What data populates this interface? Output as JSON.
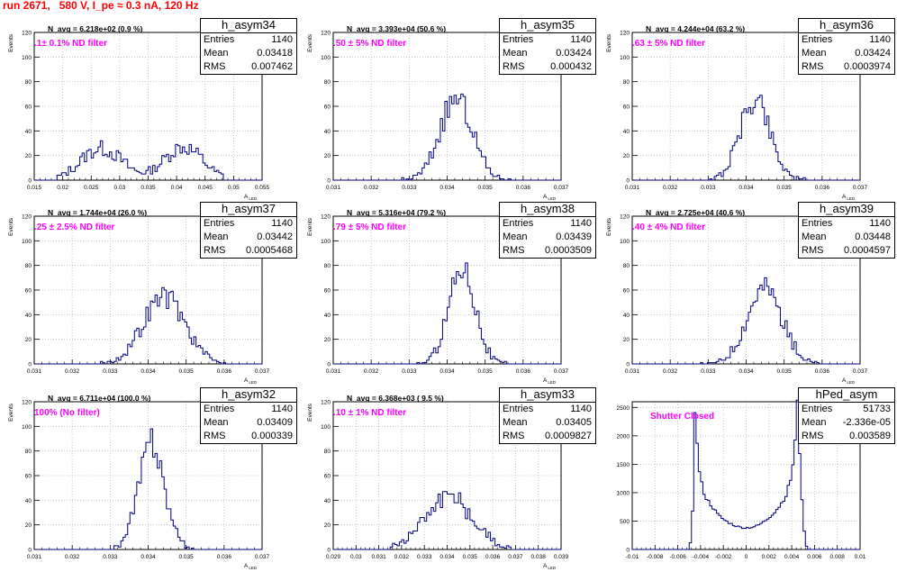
{
  "run_title": "run 2671,   580 V, I_pe ≈ 0.3 nA, 120 Hz",
  "colors": {
    "title": "#ff0000",
    "histogram": "#000080",
    "annotation": "#ff00ff",
    "grid": "#bbbbbb"
  },
  "stat_labels": {
    "entries": "Entries",
    "mean": "Mean",
    "rms": "RMS"
  },
  "chart_data": [
    {
      "type": "histogram",
      "name": "h_asym34",
      "n_avg": "N_avg = 6.218e+02 (0.9 %)",
      "filter": ".1± 0.1% ND filter",
      "entries": "1140",
      "mean": "0.03418",
      "rms": "0.007462",
      "ylabel": "Events",
      "xlabel": "A_LED",
      "xlim": [
        0.015,
        0.055
      ],
      "ylim": [
        0,
        120
      ],
      "grid": true,
      "xticks": [
        "0.015",
        "0.02",
        "0.025",
        "0.03",
        "0.035",
        "0.04",
        "0.045",
        "0.05",
        "0.055"
      ],
      "xtick_values": [
        0.015,
        0.02,
        0.025,
        0.03,
        0.035,
        0.04,
        0.045,
        0.05,
        0.055
      ],
      "yticks": [
        0,
        20,
        40,
        60,
        80,
        100,
        120
      ],
      "peaks": [
        {
          "center": 0.0268,
          "sigma": 0.0036,
          "height": 26
        },
        {
          "center": 0.0412,
          "sigma": 0.0034,
          "height": 27
        }
      ],
      "x_range": [
        0.019,
        0.048
      ]
    },
    {
      "type": "histogram",
      "name": "h_asym35",
      "n_avg": "N_avg = 3.393e+04 (50.6 %)",
      "filter": ".50 ± 5% ND filter",
      "entries": "1140",
      "mean": "0.03424",
      "rms": "0.000432",
      "ylabel": "Events",
      "xlabel": "A_LED",
      "xlim": [
        0.031,
        0.037
      ],
      "ylim": [
        0,
        120
      ],
      "grid": true,
      "xticks": [
        "0.031",
        "0.032",
        "0.033",
        "0.034",
        "0.035",
        "0.036",
        "0.037"
      ],
      "xtick_values": [
        0.031,
        0.032,
        0.033,
        0.034,
        0.035,
        0.036,
        0.037
      ],
      "yticks": [
        0,
        20,
        40,
        60,
        80,
        100,
        120
      ],
      "peaks": [
        {
          "center": 0.03424,
          "sigma": 0.00043,
          "height": 66
        }
      ],
      "x_range": [
        0.0328,
        0.0358
      ]
    },
    {
      "type": "histogram",
      "name": "h_asym36",
      "n_avg": "N_avg = 4.244e+04 (63.2 %)",
      "filter": ".63 ± 5% ND filter",
      "entries": "1140",
      "mean": "0.03424",
      "rms": "0.0003974",
      "ylabel": "Events",
      "xlabel": "A_LED",
      "xlim": [
        0.031,
        0.037
      ],
      "ylim": [
        0,
        120
      ],
      "grid": true,
      "xticks": [
        "0.031",
        "0.032",
        "0.033",
        "0.034",
        "0.035",
        "0.036",
        "0.037"
      ],
      "xtick_values": [
        0.031,
        0.032,
        0.033,
        0.034,
        0.035,
        0.036,
        0.037
      ],
      "yticks": [
        0,
        20,
        40,
        60,
        80,
        100,
        120
      ],
      "peaks": [
        {
          "center": 0.03424,
          "sigma": 0.000397,
          "height": 66
        }
      ],
      "x_range": [
        0.033,
        0.0356
      ]
    },
    {
      "type": "histogram",
      "name": "h_asym37",
      "n_avg": "N_avg = 1.744e+04 (26.0 %)",
      "filter": ".25 ± 2.5% ND filter",
      "entries": "1140",
      "mean": "0.03442",
      "rms": "0.0005468",
      "ylabel": "Events",
      "xlabel": "A_LED",
      "xlim": [
        0.031,
        0.037
      ],
      "ylim": [
        0,
        120
      ],
      "grid": true,
      "xticks": [
        "0.031",
        "0.032",
        "0.033",
        "0.034",
        "0.035",
        "0.036",
        "0.037"
      ],
      "xtick_values": [
        0.031,
        0.032,
        0.033,
        0.034,
        0.035,
        0.036,
        0.037
      ],
      "yticks": [
        0,
        20,
        40,
        60,
        80,
        100,
        120
      ],
      "peaks": [
        {
          "center": 0.03442,
          "sigma": 0.000547,
          "height": 55
        }
      ],
      "x_range": [
        0.0326,
        0.0362
      ]
    },
    {
      "type": "histogram",
      "name": "h_asym38",
      "n_avg": "N_avg = 5.316e+04 (79.2 %)",
      "filter": ".79 ± 5% ND filter",
      "entries": "1140",
      "mean": "0.03439",
      "rms": "0.0003509",
      "ylabel": "Events",
      "xlabel": "A_LED",
      "xlim": [
        0.031,
        0.037
      ],
      "ylim": [
        0,
        120
      ],
      "grid": true,
      "xticks": [
        "0.031",
        "0.032",
        "0.033",
        "0.034",
        "0.035",
        "0.036",
        "0.037"
      ],
      "xtick_values": [
        0.031,
        0.032,
        0.033,
        0.034,
        0.035,
        0.036,
        0.037
      ],
      "yticks": [
        0,
        20,
        40,
        60,
        80,
        100,
        120
      ],
      "peaks": [
        {
          "center": 0.03439,
          "sigma": 0.000351,
          "height": 80
        }
      ],
      "x_range": [
        0.0332,
        0.0356
      ]
    },
    {
      "type": "histogram",
      "name": "h_asym39",
      "n_avg": "N_avg = 2.725e+04 (40.6 %)",
      "filter": ".40 ± 4% ND filter",
      "entries": "1140",
      "mean": "0.03448",
      "rms": "0.0004597",
      "ylabel": "Events",
      "xlabel": "A_LED",
      "xlim": [
        0.031,
        0.037
      ],
      "ylim": [
        0,
        120
      ],
      "grid": true,
      "xticks": [
        "0.031",
        "0.032",
        "0.033",
        "0.034",
        "0.035",
        "0.036",
        "0.037"
      ],
      "xtick_values": [
        0.031,
        0.032,
        0.033,
        0.034,
        0.035,
        0.036,
        0.037
      ],
      "yticks": [
        0,
        20,
        40,
        60,
        80,
        100,
        120
      ],
      "peaks": [
        {
          "center": 0.03448,
          "sigma": 0.00046,
          "height": 62
        }
      ],
      "x_range": [
        0.0328,
        0.036
      ]
    },
    {
      "type": "histogram",
      "name": "h_asym32",
      "n_avg": "N_avg = 6.711e+04 (100.0 %)",
      "filter": "100% (No filter)",
      "entries": "1140",
      "mean": "0.03409",
      "rms": "0.000339",
      "ylabel": "Events",
      "xlabel": "A_LED",
      "xlim": [
        0.031,
        0.037
      ],
      "ylim": [
        0,
        120
      ],
      "grid": true,
      "xticks": [
        "0.031",
        "0.032",
        "0.033",
        "0.034",
        "0.035",
        "0.036",
        "0.037"
      ],
      "xtick_values": [
        0.031,
        0.032,
        0.033,
        0.034,
        0.035,
        0.036,
        0.037
      ],
      "yticks": [
        0,
        20,
        40,
        60,
        80,
        100,
        120
      ],
      "peaks": [
        {
          "center": 0.03409,
          "sigma": 0.000339,
          "height": 86
        }
      ],
      "x_range": [
        0.033,
        0.0352
      ]
    },
    {
      "type": "histogram",
      "name": "h_asym33",
      "n_avg": "N_avg = 6.368e+03 ( 9.5 %)",
      "filter": ".10 ± 1% ND filter",
      "entries": "1140",
      "mean": "0.03405",
      "rms": "0.0009827",
      "ylabel": "Events",
      "xlabel": "A_LED",
      "xlim": [
        0.029,
        0.039
      ],
      "ylim": [
        0,
        120
      ],
      "grid": true,
      "xticks": [
        "0.029",
        "0.03",
        "0.031",
        "0.032",
        "0.033",
        "0.034",
        "0.035",
        "0.036",
        "0.037",
        "0.038",
        "0.039"
      ],
      "xtick_values": [
        0.029,
        0.03,
        0.031,
        0.032,
        0.033,
        0.034,
        0.035,
        0.036,
        0.037,
        0.038,
        0.039
      ],
      "yticks": [
        0,
        20,
        40,
        60,
        80,
        100,
        120
      ],
      "peaks": [
        {
          "center": 0.03405,
          "sigma": 0.00105,
          "height": 44
        }
      ],
      "x_range": [
        0.0315,
        0.0368
      ]
    },
    {
      "type": "histogram",
      "name": "hPed_asym",
      "n_avg": "",
      "filter": "Shutter Closed",
      "entries": "51733",
      "mean": "-2.336e-05",
      "rms": "0.003589",
      "ylabel": "",
      "xlabel": "",
      "xlim": [
        -0.01,
        0.01
      ],
      "ylim": [
        0,
        2600
      ],
      "grid": true,
      "xticks": [
        "-0.01",
        "-0.008",
        "-0.006",
        "-0.004",
        "-0.002",
        "0",
        "0.002",
        "0.004",
        "0.006",
        "0.008",
        "0.01"
      ],
      "xtick_values": [
        -0.01,
        -0.008,
        -0.006,
        -0.004,
        -0.002,
        0,
        0.002,
        0.004,
        0.006,
        0.008,
        0.01
      ],
      "yticks": [
        0,
        500,
        1000,
        1500,
        2000,
        2500
      ],
      "ped_profile": [
        [
          -0.005,
          0
        ],
        [
          -0.0049,
          120
        ],
        [
          -0.0047,
          700
        ],
        [
          -0.0046,
          1400
        ],
        [
          -0.0045,
          2350
        ],
        [
          -0.0044,
          2550
        ],
        [
          -0.0043,
          1900
        ],
        [
          -0.0041,
          1350
        ],
        [
          -0.0038,
          1050
        ],
        [
          -0.0035,
          900
        ],
        [
          -0.003,
          760
        ],
        [
          -0.0025,
          620
        ],
        [
          -0.002,
          530
        ],
        [
          -0.0015,
          470
        ],
        [
          -0.001,
          420
        ],
        [
          -0.0005,
          390
        ],
        [
          0.0,
          380
        ],
        [
          0.0005,
          390
        ],
        [
          0.001,
          420
        ],
        [
          0.0015,
          480
        ],
        [
          0.002,
          560
        ],
        [
          0.0025,
          660
        ],
        [
          0.003,
          780
        ],
        [
          0.0035,
          950
        ],
        [
          0.004,
          1300
        ],
        [
          0.0043,
          1900
        ],
        [
          0.0045,
          2550
        ],
        [
          0.0046,
          2150
        ],
        [
          0.0048,
          1300
        ],
        [
          0.005,
          500
        ],
        [
          0.0052,
          120
        ],
        [
          0.0054,
          0
        ]
      ]
    }
  ]
}
